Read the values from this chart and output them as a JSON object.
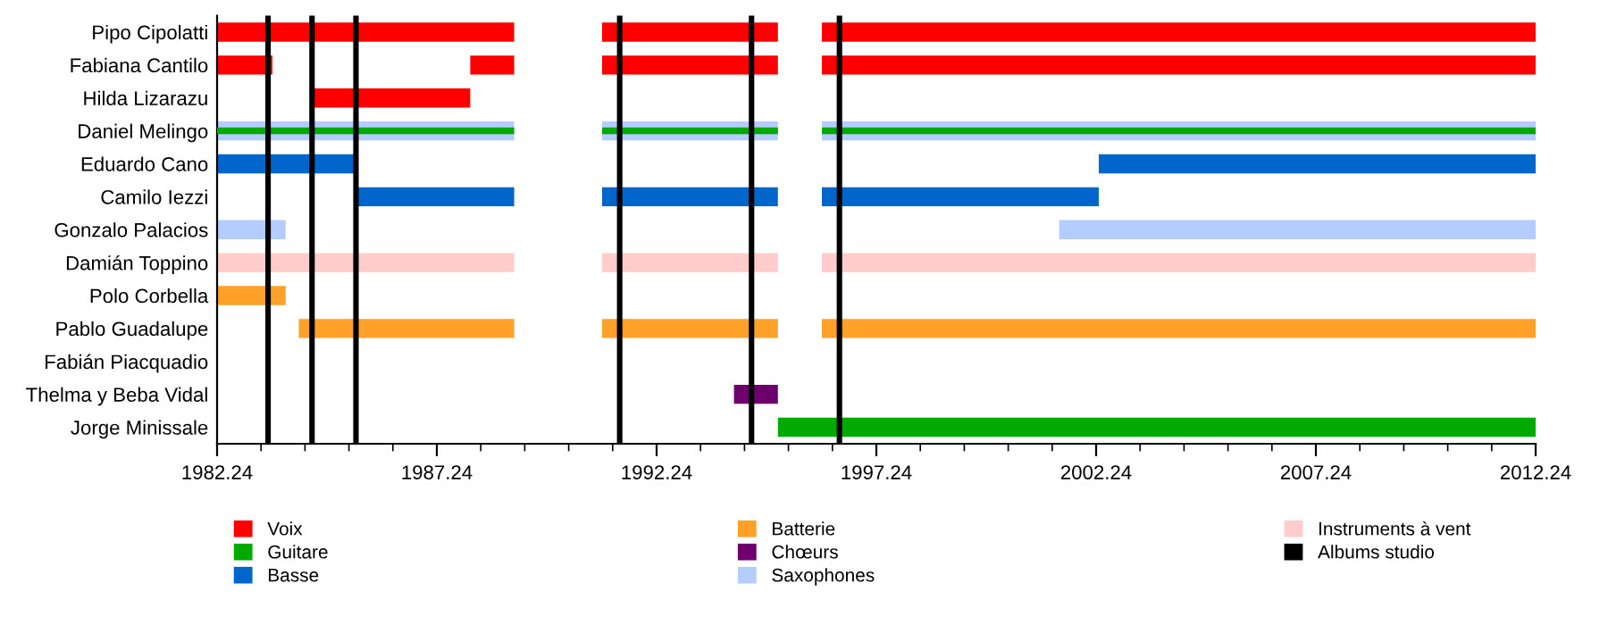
{
  "chart_data": {
    "type": "bar",
    "orientation": "horizontal",
    "categories": [
      "Pipo Cipolatti",
      "Fabiana Cantilo",
      "Hilda Lizarazu",
      "Daniel Melingo",
      "Eduardo Cano",
      "Camilo Iezzi",
      "Gonzalo Palacios",
      "Damián Toppino",
      "Polo Corbella",
      "Pablo Guadalupe",
      "Fabián Piacquadio",
      "Thelma y Beba Vidal",
      "Jorge Minissale"
    ],
    "series": [
      {
        "name": "Voix",
        "color": "#ff0000",
        "base": [
          1982.24,
          1982.24,
          1984.4,
          null,
          null,
          null,
          null,
          null,
          null,
          null,
          null,
          null,
          null
        ],
        "values": [
          6.76,
          1.26,
          3.6,
          null,
          null,
          null,
          null,
          null,
          null,
          null,
          null,
          null,
          null
        ]
      },
      {
        "color": "#ff0000",
        "base": [
          1991,
          1988,
          null,
          null,
          null,
          null,
          null,
          null,
          null,
          null,
          null,
          null,
          null
        ],
        "values": [
          4,
          1,
          null,
          null,
          null,
          null,
          null,
          null,
          null,
          null,
          null,
          null,
          null
        ]
      },
      {
        "color": "#ff0000",
        "base": [
          1996,
          1991,
          null,
          null,
          null,
          null,
          null,
          null,
          null,
          null,
          null,
          null,
          null
        ],
        "values": [
          16.24,
          4,
          null,
          null,
          null,
          null,
          null,
          null,
          null,
          null,
          null,
          null,
          null
        ]
      },
      {
        "color": "#ff0000",
        "base": [
          null,
          1996,
          null,
          null,
          null,
          null,
          null,
          null,
          null,
          null,
          null,
          null,
          null
        ],
        "values": [
          null,
          16.24,
          null,
          null,
          null,
          null,
          null,
          null,
          null,
          null,
          null,
          null,
          null
        ]
      },
      {
        "name": "Guitare",
        "color": "#00aa00",
        "base": [
          null,
          null,
          null,
          1982.24,
          null,
          null,
          null,
          null,
          null,
          null,
          null,
          null,
          1995
        ],
        "values": [
          null,
          null,
          null,
          6.76,
          null,
          null,
          null,
          null,
          null,
          null,
          null,
          null,
          17.24
        ]
      },
      {
        "color": "#00aa00",
        "base": [
          null,
          null,
          null,
          1991,
          null,
          null,
          null,
          null,
          null,
          null,
          null,
          null,
          null
        ],
        "values": [
          null,
          null,
          null,
          4,
          null,
          null,
          null,
          null,
          null,
          null,
          null,
          null,
          null
        ]
      },
      {
        "color": "#00aa00",
        "base": [
          null,
          null,
          null,
          1996,
          null,
          null,
          null,
          null,
          null,
          null,
          null,
          null,
          null
        ],
        "values": [
          null,
          null,
          null,
          16.24,
          null,
          null,
          null,
          null,
          null,
          null,
          null,
          null,
          null
        ]
      },
      {
        "name": "Basse",
        "color": "#0066cc",
        "base": [
          null,
          null,
          null,
          null,
          1982.24,
          1985.4,
          null,
          null,
          null,
          null,
          null,
          null,
          null
        ],
        "values": [
          null,
          null,
          null,
          null,
          3.16,
          3.6,
          null,
          null,
          null,
          null,
          null,
          null,
          null
        ]
      },
      {
        "color": "#0066cc",
        "base": [
          null,
          null,
          null,
          null,
          2002.3,
          1991,
          null,
          null,
          null,
          null,
          null,
          null,
          null
        ],
        "values": [
          null,
          null,
          null,
          null,
          9.94,
          4,
          null,
          null,
          null,
          null,
          null,
          null,
          null
        ]
      },
      {
        "color": "#0066cc",
        "base": [
          null,
          null,
          null,
          null,
          null,
          1996,
          null,
          null,
          null,
          null,
          null,
          null,
          null
        ],
        "values": [
          null,
          null,
          null,
          null,
          null,
          6.3,
          null,
          null,
          null,
          null,
          null,
          null,
          null
        ]
      },
      {
        "name": "Batterie",
        "color": "#ffa028",
        "base": [
          null,
          null,
          null,
          null,
          null,
          null,
          null,
          null,
          1982.24,
          1984.1,
          null,
          null,
          null
        ],
        "values": [
          null,
          null,
          null,
          null,
          null,
          null,
          null,
          null,
          1.56,
          4.9,
          null,
          null,
          null
        ]
      },
      {
        "color": "#ffa028",
        "base": [
          null,
          null,
          null,
          null,
          null,
          null,
          null,
          null,
          null,
          1991,
          null,
          null,
          null
        ],
        "values": [
          null,
          null,
          null,
          null,
          null,
          null,
          null,
          null,
          null,
          4,
          null,
          null,
          null
        ]
      },
      {
        "color": "#ffa028",
        "base": [
          null,
          null,
          null,
          null,
          null,
          null,
          null,
          null,
          null,
          1996,
          null,
          null,
          null
        ],
        "values": [
          null,
          null,
          null,
          null,
          null,
          null,
          null,
          null,
          null,
          16.24,
          null,
          null,
          null
        ]
      },
      {
        "name": "Chœurs",
        "color": "#6e006e",
        "base": [
          null,
          null,
          null,
          null,
          null,
          null,
          null,
          null,
          null,
          null,
          null,
          1994,
          null
        ],
        "values": [
          null,
          null,
          null,
          null,
          null,
          null,
          null,
          null,
          null,
          null,
          null,
          1,
          null
        ]
      },
      {
        "name": "Saxophones",
        "color": "#b4ccff",
        "base": [
          null,
          null,
          null,
          1982.24,
          null,
          null,
          1982.24,
          null,
          null,
          null,
          null,
          null,
          null
        ],
        "values": [
          null,
          null,
          null,
          6.76,
          null,
          null,
          1.56,
          null,
          null,
          null,
          null,
          null,
          null
        ]
      },
      {
        "color": "#b4ccff",
        "base": [
          null,
          null,
          null,
          1991,
          null,
          null,
          2001.4,
          null,
          null,
          null,
          null,
          null,
          null
        ],
        "values": [
          null,
          null,
          null,
          4,
          null,
          null,
          10.84,
          null,
          null,
          null,
          null,
          null,
          null
        ]
      },
      {
        "color": "#b4ccff",
        "base": [
          null,
          null,
          null,
          1996,
          null,
          null,
          null,
          null,
          null,
          null,
          null,
          null,
          null
        ],
        "values": [
          null,
          null,
          null,
          16.24,
          null,
          null,
          null,
          null,
          null,
          null,
          null,
          null,
          null
        ]
      },
      {
        "name": "Instruments à vent",
        "color": "#ffcccc",
        "base": [
          null,
          null,
          null,
          null,
          null,
          null,
          null,
          1982.24,
          null,
          null,
          null,
          null,
          null
        ],
        "values": [
          null,
          null,
          null,
          null,
          null,
          null,
          null,
          6.76,
          null,
          null,
          null,
          null,
          null
        ]
      },
      {
        "color": "#ffcccc",
        "base": [
          null,
          null,
          null,
          null,
          null,
          null,
          null,
          1991,
          null,
          null,
          null,
          null,
          null
        ],
        "values": [
          null,
          null,
          null,
          null,
          null,
          null,
          null,
          4,
          null,
          null,
          null,
          null,
          null
        ]
      },
      {
        "color": "#ffcccc",
        "base": [
          null,
          null,
          null,
          null,
          null,
          null,
          null,
          1996,
          null,
          null,
          null,
          null,
          null
        ],
        "values": [
          null,
          null,
          null,
          null,
          null,
          null,
          null,
          16.24,
          null,
          null,
          null,
          null,
          null
        ]
      }
    ],
    "ref_lines": [
      {
        "axis": "x",
        "value": 1983.4,
        "label": "Albums studio",
        "color": "#000000"
      },
      {
        "axis": "x",
        "value": 1984.4,
        "color": "#000000"
      },
      {
        "axis": "x",
        "value": 1985.4,
        "color": "#000000"
      },
      {
        "axis": "x",
        "value": 1991.4,
        "color": "#000000"
      },
      {
        "axis": "x",
        "value": 1994.4,
        "color": "#000000"
      },
      {
        "axis": "x",
        "value": 1996.4,
        "color": "#000000"
      }
    ],
    "xlim": [
      1982.24,
      2012.24
    ],
    "xticks": [
      1982.24,
      {
        "value": 1983.24,
        "label": null
      },
      {
        "value": 1984.24,
        "label": null
      },
      {
        "value": 1985.24,
        "label": null
      },
      {
        "value": 1986.24,
        "label": null
      },
      1987.24,
      {
        "value": 1988.24,
        "label": null
      },
      {
        "value": 1989.24,
        "label": null
      },
      {
        "value": 1990.24,
        "label": null
      },
      {
        "value": 1991.24,
        "label": null
      },
      1992.24,
      {
        "value": 1993.24,
        "label": null
      },
      {
        "value": 1994.24,
        "label": null
      },
      {
        "value": 1995.24,
        "label": null
      },
      {
        "value": 1996.24,
        "label": null
      },
      1997.24,
      {
        "value": 1998.24,
        "label": null
      },
      {
        "value": 1999.24,
        "label": null
      },
      {
        "value": 2000.24,
        "label": null
      },
      {
        "value": 2001.24,
        "label": null
      },
      2002.24,
      {
        "value": 2003.24,
        "label": null
      },
      {
        "value": 2004.24,
        "label": null
      },
      {
        "value": 2005.24,
        "label": null
      },
      {
        "value": 2006.24,
        "label": null
      },
      2007.24,
      {
        "value": 2008.24,
        "label": null
      },
      {
        "value": 2009.24,
        "label": null
      },
      {
        "value": 2010.24,
        "label": null
      },
      {
        "value": 2011.24,
        "label": null
      },
      2012.24
    ],
    "grid": false,
    "legend": "bottom"
  }
}
